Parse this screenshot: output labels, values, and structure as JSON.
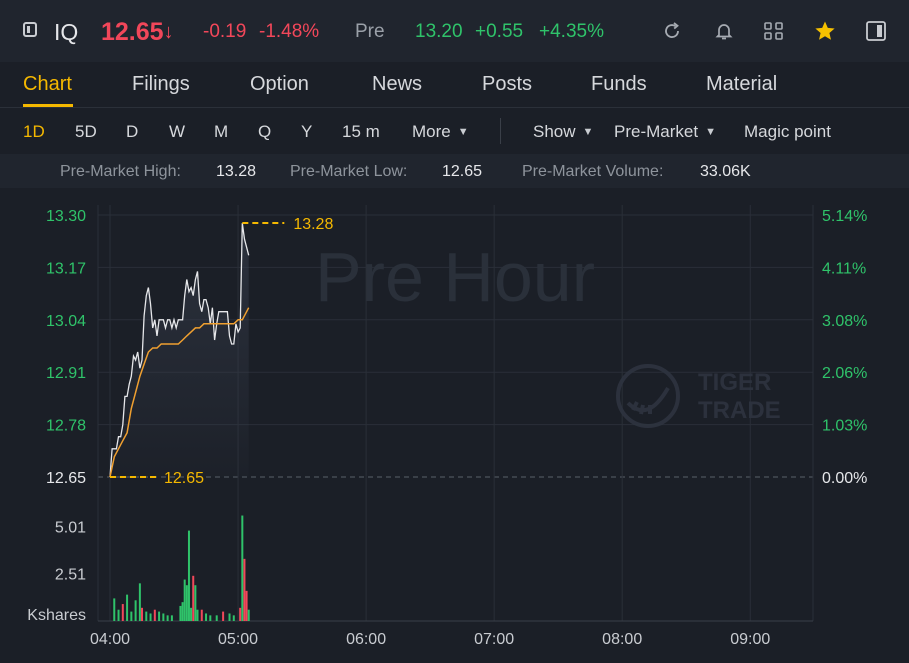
{
  "header": {
    "ticker": "IQ",
    "price": "12.65",
    "price_arrow": "↓",
    "change": "-0.19",
    "change_pct": "-1.48%",
    "pre_label": "Pre",
    "pre_price": "13.20",
    "pre_change": "+0.55",
    "pre_change_pct": "+4.35%",
    "icons": [
      "panel-toggle-icon",
      "refresh-icon",
      "bell-icon",
      "grid-icon",
      "star-icon",
      "sidebar-icon"
    ],
    "colors": {
      "down": "#f2475a",
      "up": "#2fc36a",
      "accent": "#f5b800"
    }
  },
  "tabs": [
    {
      "label": "Chart",
      "active": true
    },
    {
      "label": "Filings"
    },
    {
      "label": "Option"
    },
    {
      "label": "News"
    },
    {
      "label": "Posts"
    },
    {
      "label": "Funds"
    },
    {
      "label": "Material"
    }
  ],
  "periods": {
    "items": [
      "1D",
      "5D",
      "D",
      "W",
      "M",
      "Q",
      "Y",
      "15 m"
    ],
    "active": "1D",
    "more": "More",
    "show": "Show",
    "session": "Pre-Market",
    "magic": "Magic point"
  },
  "stats": {
    "high_label": "Pre-Market High:",
    "high": "13.28",
    "low_label": "Pre-Market Low:",
    "low": "12.65",
    "volume_label": "Pre-Market Volume:",
    "volume": "33.06K"
  },
  "chart_data": {
    "type": "line",
    "watermark": "Pre Hour",
    "brand_watermark": [
      "TIGER",
      "TRADE"
    ],
    "y_ticks": [
      "13.30",
      "13.17",
      "13.04",
      "12.91",
      "12.78",
      "12.65"
    ],
    "pct_ticks": [
      "5.14%",
      "4.11%",
      "3.08%",
      "2.06%",
      "1.03%",
      "0.00%"
    ],
    "x_ticks": [
      "04:00",
      "05:00",
      "06:00",
      "07:00",
      "08:00",
      "09:00"
    ],
    "ylim": [
      12.65,
      13.3
    ],
    "high_marker": "13.28",
    "low_marker": "12.65",
    "series": [
      {
        "color": "#e6e7ea",
        "x": [
          0,
          1,
          2,
          3,
          4,
          5,
          6,
          7,
          8,
          9,
          10,
          11,
          12,
          13,
          14,
          15,
          16,
          17,
          18,
          19,
          20,
          21,
          22,
          23,
          24,
          25,
          26,
          27,
          28,
          29,
          30,
          31,
          32,
          33,
          34,
          35,
          36,
          37,
          38,
          39,
          40,
          41,
          42,
          43,
          44,
          45,
          46,
          47,
          48,
          49,
          50,
          51,
          52,
          53,
          54,
          55,
          56,
          57,
          58,
          59,
          60,
          61,
          62,
          63,
          64,
          65
        ],
        "values": [
          12.65,
          12.72,
          12.72,
          12.72,
          12.75,
          12.75,
          12.78,
          12.85,
          12.85,
          12.88,
          12.9,
          12.95,
          12.94,
          12.96,
          12.92,
          12.94,
          13.05,
          13.1,
          13.12,
          13.08,
          13.02,
          13.04,
          13.0,
          13.04,
          13.04,
          13.04,
          13.02,
          13.04,
          13.04,
          13.02,
          13.04,
          13.02,
          13.04,
          13.04,
          13.04,
          13.1,
          13.14,
          13.11,
          13.12,
          13.1,
          13.14,
          13.16,
          13.08,
          13.06,
          13.09,
          13.09,
          13.07,
          13.03,
          13.07,
          12.99,
          13.03,
          13.06,
          13.06,
          13.06,
          13.06,
          13.06,
          13.0,
          12.98,
          12.98,
          13.03,
          13.01,
          13.02,
          13.28,
          13.24,
          13.22,
          13.2
        ],
        "label": ""
      },
      {
        "color": "#f0a030",
        "x": [
          0,
          2,
          4,
          6,
          8,
          10,
          12,
          14,
          16,
          18,
          20,
          22,
          24,
          26,
          28,
          30,
          32,
          34,
          36,
          38,
          40,
          42,
          44,
          46,
          48,
          50,
          52,
          54,
          56,
          58,
          60,
          62,
          64,
          65
        ],
        "values": [
          12.65,
          12.7,
          12.72,
          12.74,
          12.76,
          12.82,
          12.86,
          12.9,
          12.93,
          12.96,
          12.97,
          12.97,
          12.98,
          12.98,
          12.98,
          12.98,
          12.98,
          12.99,
          13.0,
          13.01,
          13.02,
          13.02,
          13.03,
          13.03,
          13.03,
          13.03,
          13.03,
          13.03,
          13.03,
          13.03,
          13.04,
          13.04,
          13.06,
          13.07
        ],
        "label": ""
      }
    ],
    "volume": {
      "ylabel": "Kshares",
      "y_ticks": [
        "5.01",
        "2.51"
      ],
      "bars": [
        [
          2,
          1.2,
          "g"
        ],
        [
          4,
          0.6,
          "g"
        ],
        [
          6,
          0.9,
          "r"
        ],
        [
          8,
          1.4,
          "g"
        ],
        [
          10,
          0.5,
          "g"
        ],
        [
          12,
          1.1,
          "g"
        ],
        [
          14,
          2.0,
          "g"
        ],
        [
          15,
          0.7,
          "r"
        ],
        [
          17,
          0.5,
          "g"
        ],
        [
          19,
          0.4,
          "g"
        ],
        [
          21,
          0.6,
          "r"
        ],
        [
          23,
          0.5,
          "g"
        ],
        [
          25,
          0.4,
          "g"
        ],
        [
          27,
          0.3,
          "g"
        ],
        [
          29,
          0.3,
          "g"
        ],
        [
          33,
          0.8,
          "g"
        ],
        [
          34,
          1.0,
          "g"
        ],
        [
          35,
          2.2,
          "g"
        ],
        [
          36,
          1.9,
          "g"
        ],
        [
          37,
          4.8,
          "g"
        ],
        [
          38,
          0.7,
          "g"
        ],
        [
          39,
          2.4,
          "r"
        ],
        [
          40,
          1.9,
          "g"
        ],
        [
          41,
          0.6,
          "g"
        ],
        [
          43,
          0.6,
          "r"
        ],
        [
          45,
          0.4,
          "g"
        ],
        [
          47,
          0.3,
          "g"
        ],
        [
          50,
          0.3,
          "g"
        ],
        [
          53,
          0.5,
          "r"
        ],
        [
          56,
          0.4,
          "g"
        ],
        [
          58,
          0.3,
          "g"
        ],
        [
          61,
          0.7,
          "r"
        ],
        [
          62,
          5.6,
          "g"
        ],
        [
          63,
          3.3,
          "r"
        ],
        [
          64,
          1.6,
          "r"
        ],
        [
          65,
          0.6,
          "g"
        ]
      ]
    }
  }
}
